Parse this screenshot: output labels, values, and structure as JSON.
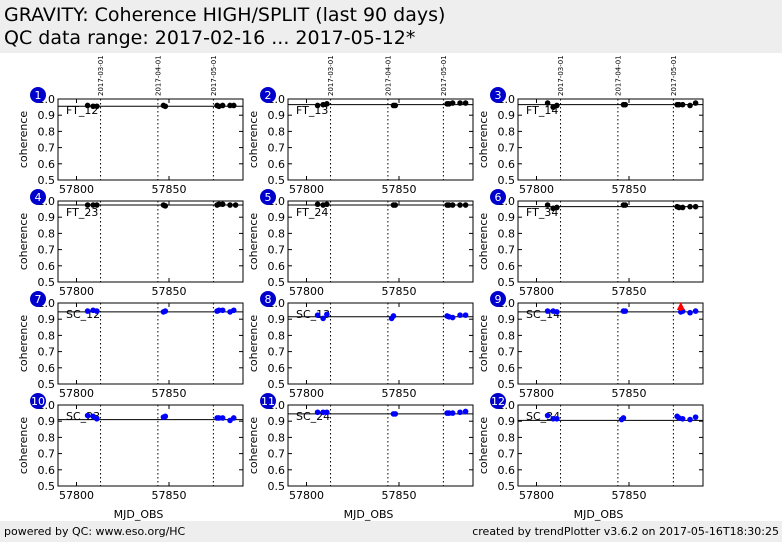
{
  "header": {
    "title": "GRAVITY: Coherence HIGH/SPLIT (last 90 days)",
    "subtitle": "QC data range: 2017-02-16 ... 2017-05-12*"
  },
  "footer": {
    "left": "powered by QC: www.eso.org/HC",
    "right": "created by trendPlotter v3.6.2 on 2017-05-16T18:30:25"
  },
  "colors": {
    "ft_points": "#000000",
    "sc_points": "#0000ff",
    "badge": "#0000cc",
    "outlier_arrow": "#ff0000"
  },
  "chart_data": {
    "type": "scatter",
    "xlabel": "MJD_OBS",
    "ylabel": "coherence",
    "xlim": [
      57790,
      57890
    ],
    "ylim": [
      0.5,
      1.0
    ],
    "xticks": [
      "57800",
      "57850"
    ],
    "yticks": [
      "0.5",
      "0.6",
      "0.7",
      "0.8",
      "0.9",
      "1.0"
    ],
    "date_markers": [
      {
        "label": "2017-03-01",
        "x": 57813
      },
      {
        "label": "2017-04-01",
        "x": 57844
      },
      {
        "label": "2017-05-01",
        "x": 57874
      }
    ],
    "panels": [
      {
        "badge": "1",
        "label": "FT_12",
        "ref": 0.955,
        "group": "ft",
        "points": [
          [
            57806,
            0.96
          ],
          [
            57809,
            0.955
          ],
          [
            57811,
            0.955
          ],
          [
            57847,
            0.96
          ],
          [
            57848,
            0.955
          ],
          [
            57876,
            0.96
          ],
          [
            57877,
            0.955
          ],
          [
            57879,
            0.96
          ],
          [
            57883,
            0.96
          ],
          [
            57885,
            0.96
          ]
        ]
      },
      {
        "badge": "2",
        "label": "FT_13",
        "ref": 0.965,
        "group": "ft",
        "points": [
          [
            57806,
            0.96
          ],
          [
            57809,
            0.965
          ],
          [
            57811,
            0.97
          ],
          [
            57847,
            0.96
          ],
          [
            57848,
            0.96
          ],
          [
            57876,
            0.97
          ],
          [
            57877,
            0.97
          ],
          [
            57879,
            0.975
          ],
          [
            57883,
            0.975
          ],
          [
            57886,
            0.975
          ]
        ]
      },
      {
        "badge": "3",
        "label": "FT_14",
        "ref": 0.965,
        "group": "ft",
        "points": [
          [
            57806,
            0.975
          ],
          [
            57809,
            0.95
          ],
          [
            57811,
            0.96
          ],
          [
            57847,
            0.965
          ],
          [
            57848,
            0.965
          ],
          [
            57876,
            0.965
          ],
          [
            57877,
            0.965
          ],
          [
            57879,
            0.965
          ],
          [
            57883,
            0.96
          ],
          [
            57886,
            0.975
          ]
        ]
      },
      {
        "badge": "4",
        "label": "FT_23",
        "ref": 0.975,
        "group": "ft",
        "points": [
          [
            57806,
            0.975
          ],
          [
            57809,
            0.975
          ],
          [
            57811,
            0.975
          ],
          [
            57847,
            0.975
          ],
          [
            57848,
            0.97
          ],
          [
            57876,
            0.975
          ],
          [
            57877,
            0.98
          ],
          [
            57879,
            0.98
          ],
          [
            57883,
            0.975
          ],
          [
            57886,
            0.975
          ]
        ]
      },
      {
        "badge": "5",
        "label": "FT_24",
        "ref": 0.975,
        "group": "ft",
        "points": [
          [
            57806,
            0.98
          ],
          [
            57809,
            0.975
          ],
          [
            57811,
            0.98
          ],
          [
            57847,
            0.975
          ],
          [
            57848,
            0.975
          ],
          [
            57876,
            0.975
          ],
          [
            57877,
            0.975
          ],
          [
            57879,
            0.975
          ],
          [
            57883,
            0.975
          ],
          [
            57886,
            0.975
          ]
        ]
      },
      {
        "badge": "6",
        "label": "FT_34",
        "ref": 0.965,
        "group": "ft",
        "points": [
          [
            57806,
            0.975
          ],
          [
            57809,
            0.955
          ],
          [
            57811,
            0.96
          ],
          [
            57847,
            0.975
          ],
          [
            57848,
            0.975
          ],
          [
            57876,
            0.965
          ],
          [
            57877,
            0.96
          ],
          [
            57879,
            0.96
          ],
          [
            57883,
            0.965
          ],
          [
            57886,
            0.965
          ]
        ]
      },
      {
        "badge": "7",
        "label": "SC_12",
        "ref": 0.945,
        "group": "sc",
        "points": [
          [
            57806,
            0.95
          ],
          [
            57809,
            0.955
          ],
          [
            57811,
            0.95
          ],
          [
            57847,
            0.945
          ],
          [
            57848,
            0.95
          ],
          [
            57876,
            0.95
          ],
          [
            57877,
            0.955
          ],
          [
            57879,
            0.955
          ],
          [
            57883,
            0.945
          ],
          [
            57885,
            0.955
          ]
        ]
      },
      {
        "badge": "8",
        "label": "SC_13",
        "ref": 0.915,
        "group": "sc",
        "points": [
          [
            57806,
            0.925
          ],
          [
            57809,
            0.905
          ],
          [
            57811,
            0.93
          ],
          [
            57846,
            0.905
          ],
          [
            57847,
            0.92
          ],
          [
            57876,
            0.92
          ],
          [
            57877,
            0.915
          ],
          [
            57879,
            0.91
          ],
          [
            57883,
            0.925
          ],
          [
            57886,
            0.925
          ]
        ]
      },
      {
        "badge": "9",
        "label": "SC_14",
        "ref": 0.945,
        "group": "sc",
        "outlier_arrow_x": 57878,
        "points": [
          [
            57806,
            0.95
          ],
          [
            57809,
            0.95
          ],
          [
            57811,
            0.945
          ],
          [
            57847,
            0.95
          ],
          [
            57848,
            0.95
          ],
          [
            57878,
            0.945
          ],
          [
            57879,
            0.95
          ],
          [
            57883,
            0.94
          ],
          [
            57886,
            0.95
          ]
        ]
      },
      {
        "badge": "10",
        "label": "SC_23",
        "ref": 0.91,
        "group": "sc",
        "points": [
          [
            57806,
            0.935
          ],
          [
            57809,
            0.93
          ],
          [
            57811,
            0.915
          ],
          [
            57847,
            0.925
          ],
          [
            57848,
            0.93
          ],
          [
            57876,
            0.92
          ],
          [
            57877,
            0.92
          ],
          [
            57879,
            0.92
          ],
          [
            57883,
            0.905
          ],
          [
            57885,
            0.92
          ]
        ]
      },
      {
        "badge": "11",
        "label": "SC_24",
        "ref": 0.945,
        "group": "sc",
        "points": [
          [
            57806,
            0.955
          ],
          [
            57809,
            0.955
          ],
          [
            57811,
            0.955
          ],
          [
            57847,
            0.945
          ],
          [
            57848,
            0.945
          ],
          [
            57876,
            0.95
          ],
          [
            57877,
            0.95
          ],
          [
            57879,
            0.95
          ],
          [
            57883,
            0.955
          ],
          [
            57886,
            0.96
          ]
        ]
      },
      {
        "badge": "12",
        "label": "SC_34",
        "ref": 0.905,
        "group": "sc",
        "points": [
          [
            57806,
            0.935
          ],
          [
            57809,
            0.915
          ],
          [
            57811,
            0.915
          ],
          [
            57846,
            0.91
          ],
          [
            57847,
            0.92
          ],
          [
            57876,
            0.93
          ],
          [
            57877,
            0.92
          ],
          [
            57879,
            0.915
          ],
          [
            57883,
            0.91
          ],
          [
            57886,
            0.925
          ]
        ]
      }
    ]
  }
}
